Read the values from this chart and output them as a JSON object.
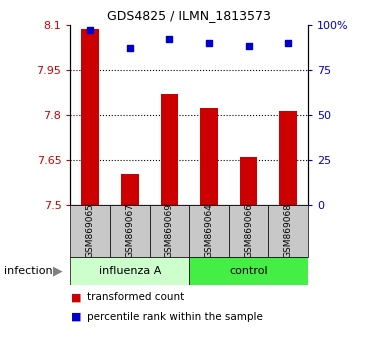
{
  "title": "GDS4825 / ILMN_1813573",
  "samples": [
    "GSM869065",
    "GSM869067",
    "GSM869069",
    "GSM869064",
    "GSM869066",
    "GSM869068"
  ],
  "group_labels": [
    "influenza A",
    "control"
  ],
  "bar_values": [
    8.085,
    7.605,
    7.87,
    7.825,
    7.66,
    7.815
  ],
  "percentile_values": [
    97,
    87,
    92,
    90,
    88,
    90
  ],
  "ylim_left": [
    7.5,
    8.1
  ],
  "ylim_right": [
    0,
    100
  ],
  "yticks_left": [
    7.5,
    7.65,
    7.8,
    7.95,
    8.1
  ],
  "ytick_labels_left": [
    "7.5",
    "7.65",
    "7.8",
    "7.95",
    "8.1"
  ],
  "yticks_right": [
    0,
    25,
    50,
    75,
    100
  ],
  "ytick_labels_right": [
    "0",
    "25",
    "50",
    "75",
    "100%"
  ],
  "bar_color": "#cc0000",
  "percentile_color": "#0000cc",
  "label_area_color": "#c8c8c8",
  "influenza_color": "#ccffcc",
  "control_color": "#44ee44",
  "infection_label": "infection",
  "legend_bar_label": "transformed count",
  "legend_dot_label": "percentile rank within the sample",
  "title_fontsize": 9,
  "tick_fontsize": 8,
  "sample_fontsize": 6.5,
  "group_fontsize": 8,
  "legend_fontsize": 7.5
}
